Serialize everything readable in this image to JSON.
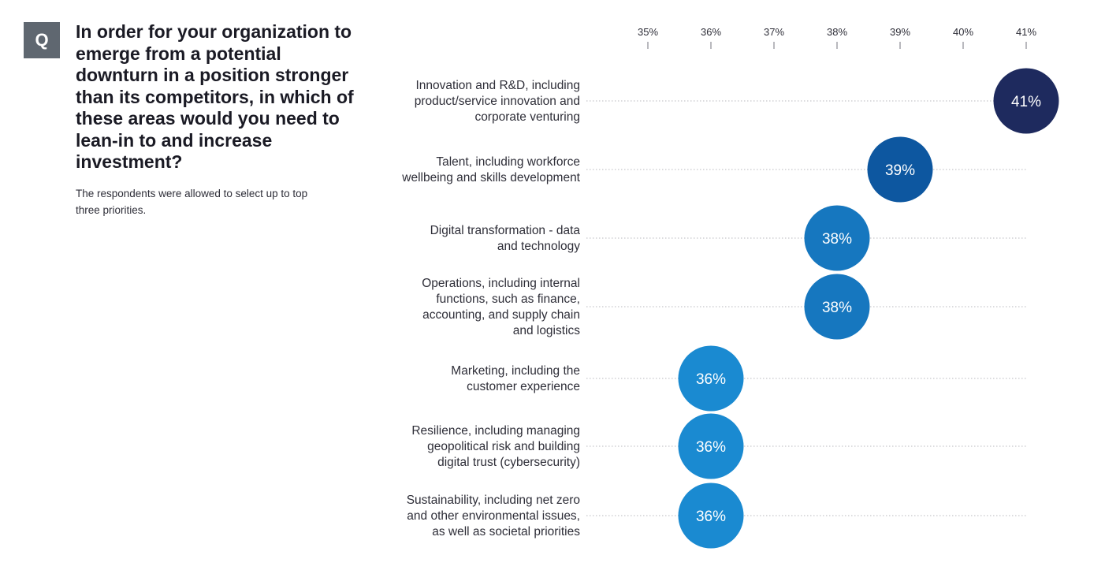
{
  "header": {
    "badge": "Q",
    "question": "In order for your organization to emerge from a potential downturn in a position stronger than its competitors, in which of these areas would you need to lean-in to and increase investment?",
    "note": "The respondents were allowed to select up to top three priorities."
  },
  "chart_data": {
    "type": "scatter",
    "title": "In order for your organization to emerge from a potential downturn in a position stronger than its competitors, in which of these areas would you need to lean-in to and increase investment?",
    "subtitle": "The respondents were allowed to select up to top three priorities.",
    "xlabel": "",
    "ylabel": "",
    "xlim": [
      35,
      41
    ],
    "x_ticks": [
      35,
      36,
      37,
      38,
      39,
      40,
      41
    ],
    "x_tick_labels": [
      "35%",
      "36%",
      "37%",
      "38%",
      "39%",
      "40%",
      "41%"
    ],
    "x_axis_position": "top",
    "grid": true,
    "legend": "none",
    "categories": [
      [
        "Innovation and R&D, including",
        "product/service innovation and",
        "corporate venturing"
      ],
      [
        "Talent, including workforce",
        "wellbeing and skills development"
      ],
      [
        "Digital transformation - data",
        "and technology"
      ],
      [
        "Operations, including internal",
        "functions, such as finance,",
        "accounting, and supply chain",
        "and logistics"
      ],
      [
        "Marketing, including the",
        "customer experience"
      ],
      [
        "Resilience, including managing",
        "geopolitical risk and building",
        "digital trust (cybersecurity)"
      ],
      [
        "Sustainability, including net zero",
        "and other environmental issues,",
        "as well as societal priorities"
      ]
    ],
    "values": [
      41,
      39,
      38,
      38,
      36,
      36,
      36
    ],
    "value_labels": [
      "41%",
      "39%",
      "38%",
      "38%",
      "36%",
      "36%",
      "36%"
    ],
    "colors": [
      "#1e2a5e",
      "#0d57a0",
      "#1677bf",
      "#1677bf",
      "#1a8ad1",
      "#1a8ad1",
      "#1a8ad1"
    ]
  }
}
